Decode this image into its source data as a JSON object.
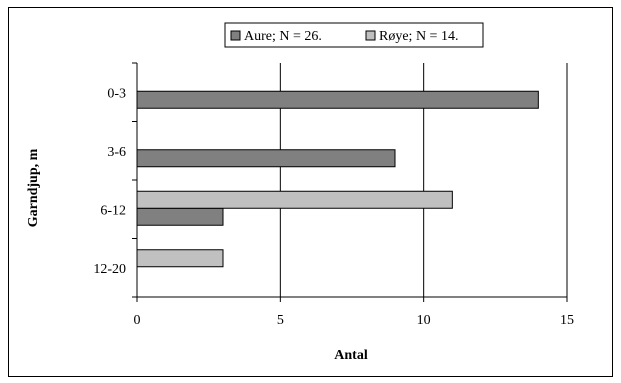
{
  "chart_data": {
    "type": "bar",
    "orientation": "horizontal",
    "title": "",
    "xlabel": "Antal",
    "ylabel": "Garndjup, m",
    "categories": [
      "0-3",
      "3-6",
      "6-12",
      "12-20"
    ],
    "xlim": [
      0,
      15
    ],
    "x_ticks": [
      "0",
      "5",
      "10",
      "15"
    ],
    "grid": "vertical",
    "legend_position": "top",
    "series": [
      {
        "name": "Aure; N =  26.",
        "color": "#808080",
        "values": [
          14,
          9,
          3,
          null
        ]
      },
      {
        "name": "Røye; N =  14.",
        "color": "#c0c0c0",
        "values": [
          null,
          null,
          11,
          3
        ]
      }
    ]
  }
}
